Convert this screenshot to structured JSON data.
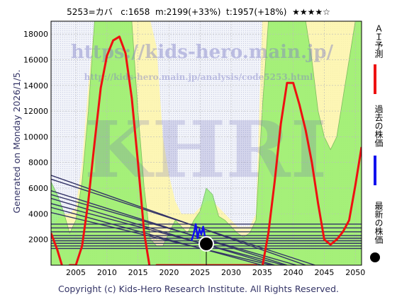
{
  "header": {
    "code_name": "5253=カバ",
    "current": "c:1658",
    "max": "m:2199(+33%)",
    "target": "t:1957(+18%)",
    "stars": "★★★★☆"
  },
  "side_left": "Generated on Monday 2026/1/5.",
  "footer": "Copyright (c) Kids-Hero Research Institute. All Rights Reserved.",
  "watermark": {
    "url1": "https://kids-hero.main.jp/",
    "url2": "http://kids-hero.main.jp/analysis/code5253.html",
    "big": "KHRI"
  },
  "legend": [
    {
      "label": "ＡＩ予測",
      "color": "#ee1111"
    },
    {
      "label": "過去の株価",
      "color": "#1111ee"
    },
    {
      "label": "最新の株価",
      "color": "#000000"
    }
  ],
  "colors": {
    "ai": "#ee1111",
    "past": "#1111ee",
    "latest": "#000000",
    "trend": "#333366",
    "band_green": "#88ee66",
    "band_yellow": "#fff6a8"
  },
  "chart_data": {
    "type": "line",
    "title": "",
    "xlabel": "",
    "ylabel": "",
    "xlim": [
      2001,
      2051
    ],
    "ylim": [
      0,
      19000
    ],
    "x_ticks": [
      2005,
      2010,
      2015,
      2020,
      2025,
      2030,
      2035,
      2040,
      2045,
      2050
    ],
    "y_ticks": [
      2000,
      4000,
      6000,
      8000,
      10000,
      12000,
      14000,
      16000,
      18000
    ],
    "grid": true,
    "series": [
      {
        "name": "ＡＩ予測",
        "x": [
          2001,
          2002,
          2003,
          2004,
          2005,
          2006,
          2007,
          2008,
          2009,
          2010,
          2011,
          2012,
          2013,
          2014,
          2015,
          2016,
          2017,
          2018,
          2019,
          2020,
          2021,
          2022,
          2023,
          2024,
          2025,
          2026,
          2027,
          2028,
          2029,
          2030,
          2031,
          2032,
          2033,
          2034,
          2035,
          2036,
          2037,
          2038,
          2039,
          2040,
          2041,
          2042,
          2043,
          2044,
          2045,
          2046,
          2047,
          2048,
          2049,
          2050,
          2051
        ],
        "values": [
          2500,
          1200,
          -400,
          0,
          0,
          1500,
          5000,
          9500,
          13800,
          16300,
          17500,
          17800,
          16500,
          13000,
          8000,
          2500,
          -500,
          0,
          0,
          0,
          0,
          0,
          0,
          0,
          0,
          0,
          0,
          0,
          0,
          0,
          0,
          0,
          0,
          0,
          -200,
          2500,
          6500,
          11000,
          14200,
          14200,
          12500,
          10500,
          8000,
          4800,
          2000,
          1600,
          2000,
          2600,
          3500,
          6200,
          9200
        ]
      },
      {
        "name": "過去の株価",
        "x": [
          2023.6,
          2024.0,
          2024.3,
          2024.6,
          2024.9,
          2025.2,
          2025.5,
          2025.8,
          2026.0
        ],
        "values": [
          1900,
          2500,
          3200,
          2100,
          2800,
          2400,
          3000,
          2200,
          1658
        ]
      }
    ],
    "latest_point": {
      "x": 2026.0,
      "y": 1658
    },
    "trend_lines": [
      {
        "x": [
          2001,
          2042
        ],
        "y": [
          7000,
          0
        ]
      },
      {
        "x": [
          2001,
          2043.5
        ],
        "y": [
          6700,
          0
        ]
      },
      {
        "x": [
          2001,
          2039
        ],
        "y": [
          5800,
          0
        ]
      },
      {
        "x": [
          2001,
          2040.5
        ],
        "y": [
          5500,
          0
        ]
      },
      {
        "x": [
          2001,
          2037
        ],
        "y": [
          5200,
          0
        ]
      },
      {
        "x": [
          2001,
          2038.5
        ],
        "y": [
          4800,
          0
        ]
      },
      {
        "x": [
          2001,
          2035
        ],
        "y": [
          4500,
          0
        ]
      },
      {
        "x": [
          2001,
          2036.5
        ],
        "y": [
          4100,
          0
        ]
      }
    ],
    "horizontal_lines": [
      3200,
      2900,
      2600,
      2300,
      2100,
      1900,
      1700,
      1500,
      1300
    ],
    "bands": {
      "x": [
        2001,
        2002,
        2003,
        2004,
        2005,
        2006,
        2007,
        2008,
        2009,
        2010,
        2011,
        2012,
        2013,
        2014,
        2015,
        2016,
        2017,
        2018,
        2019,
        2020,
        2021,
        2022,
        2023,
        2024,
        2025,
        2026,
        2027,
        2028,
        2029,
        2030,
        2031,
        2032,
        2033,
        2034,
        2035,
        2036,
        2037,
        2038,
        2039,
        2040,
        2041,
        2042,
        2043,
        2044,
        2045,
        2046,
        2047,
        2048,
        2049,
        2050,
        2051
      ],
      "green_top": [
        6500,
        5500,
        4200,
        2500,
        3500,
        6500,
        12000,
        19000,
        19000,
        19000,
        19000,
        19000,
        19000,
        19000,
        12000,
        6000,
        2000,
        1500,
        1500,
        2500,
        3500,
        3000,
        2500,
        3500,
        4200,
        6000,
        5500,
        3800,
        3500,
        3000,
        2500,
        2200,
        2500,
        3500,
        12000,
        19000,
        19000,
        19000,
        19000,
        19000,
        19000,
        19000,
        16000,
        12000,
        10000,
        9000,
        10000,
        13000,
        16000,
        19000,
        19000
      ],
      "yellow_top": [
        3000,
        3500,
        4000,
        4000,
        4500,
        8000,
        14000,
        19000,
        19000,
        19000,
        19000,
        19000,
        19000,
        19000,
        19000,
        19000,
        19000,
        17000,
        10000,
        7000,
        5000,
        4000,
        4000,
        4000,
        4500,
        5000,
        5000,
        4500,
        4000,
        3500,
        3000,
        3000,
        3000,
        4000,
        19000,
        19000,
        19000,
        19000,
        19000,
        19000,
        19000,
        19000,
        19000,
        19000,
        19000,
        19000,
        19000,
        19000,
        19000,
        19000,
        19000
      ]
    }
  }
}
